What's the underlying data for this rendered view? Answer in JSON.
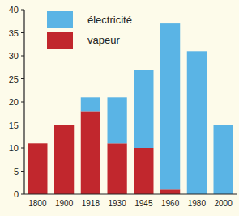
{
  "chart_data": {
    "type": "bar",
    "stacked": true,
    "legend": "top-left",
    "categories": [
      "1800",
      "1900",
      "1918",
      "1930",
      "1945",
      "1960",
      "1980",
      "2000"
    ],
    "series": [
      {
        "name": "vapeur",
        "color": "#c1272d",
        "values": [
          11,
          15,
          18,
          11,
          10,
          1,
          0,
          0
        ]
      },
      {
        "name": "électricité",
        "color": "#5ab4e5",
        "values": [
          0,
          0,
          3,
          10,
          17,
          36,
          31,
          15
        ]
      }
    ],
    "ylim": [
      0,
      40
    ],
    "yticks": [
      0,
      5,
      10,
      15,
      20,
      25,
      30,
      35,
      40
    ],
    "grid": false
  }
}
